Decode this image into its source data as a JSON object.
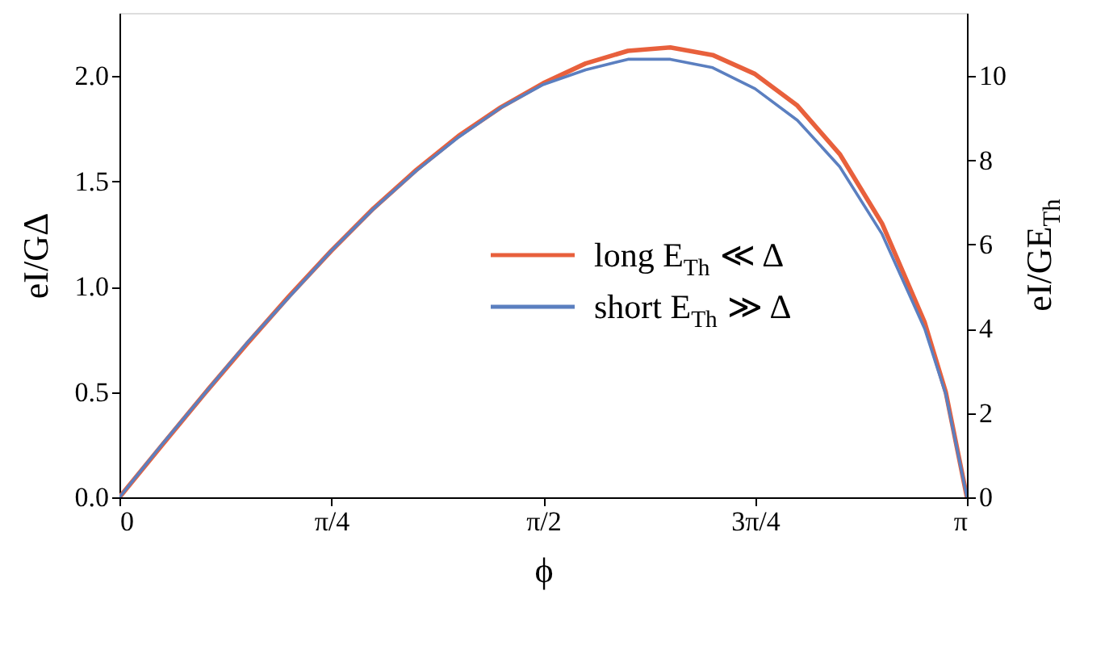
{
  "chart_data": {
    "type": "line",
    "xlabel": "ϕ",
    "ylabel": "eI/GΔ",
    "y2label": "eI/GE$_{Th}$",
    "x": [
      0,
      0.157,
      0.314,
      0.471,
      0.628,
      0.785,
      0.942,
      1.1,
      1.257,
      1.414,
      1.571,
      1.728,
      1.885,
      2.042,
      2.199,
      2.356,
      2.513,
      2.67,
      2.827,
      2.985,
      3.063,
      3.1416
    ],
    "series": [
      {
        "name": "long E$_{Th}$ ≪ Δ",
        "color": "#e8603c",
        "axis": "y2",
        "values": [
          0,
          1.23,
          2.45,
          3.63,
          4.77,
          5.85,
          6.86,
          7.77,
          8.58,
          9.26,
          9.83,
          10.3,
          10.6,
          10.68,
          10.5,
          10.05,
          9.3,
          8.15,
          6.5,
          4.15,
          2.5,
          0
        ]
      },
      {
        "name": "short E$_{Th}$ ≫ Δ",
        "color": "#5b7fc0",
        "values": [
          0,
          0.25,
          0.49,
          0.73,
          0.95,
          1.17,
          1.37,
          1.55,
          1.71,
          1.85,
          1.96,
          2.03,
          2.08,
          2.08,
          2.04,
          1.94,
          1.79,
          1.57,
          1.25,
          0.8,
          0.49,
          0
        ]
      }
    ],
    "xlim": [
      0,
      3.1416
    ],
    "xticks": [
      0,
      {
        "value": 0.7854,
        "label": "π/4"
      },
      {
        "value": 1.5708,
        "label": "π/2"
      },
      {
        "value": 2.3562,
        "label": "3π/4"
      },
      {
        "value": 3.1416,
        "label": "π"
      }
    ],
    "ylim": [
      0,
      2.3
    ],
    "yticks": [
      {
        "value": 0,
        "label": "0.0"
      },
      0.5,
      {
        "value": 1,
        "label": "1.0"
      },
      1.5,
      {
        "value": 2,
        "label": "2.0"
      }
    ],
    "y2lim": [
      0,
      11.5
    ],
    "y2ticks": [
      0,
      2,
      4,
      6,
      8,
      10
    ],
    "legend": "center",
    "grid": false,
    "line_style": "solid",
    "marker": "none"
  }
}
